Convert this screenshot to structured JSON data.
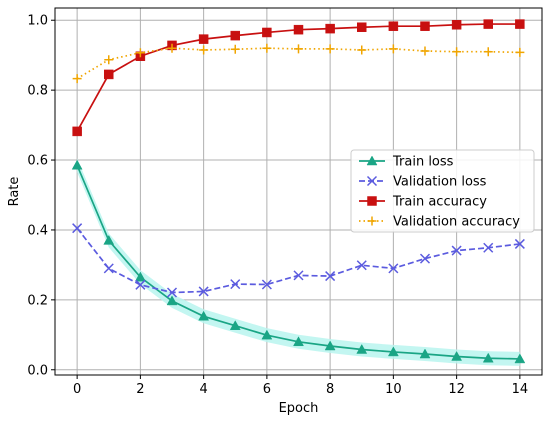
{
  "chart_data": {
    "type": "line",
    "title": "",
    "xlabel": "Epoch",
    "ylabel": "Rate",
    "xlim": [
      -0.7,
      14.7
    ],
    "ylim": [
      -0.015,
      1.035
    ],
    "x_ticks": [
      "0",
      "2",
      "4",
      "6",
      "8",
      "10",
      "12",
      "14"
    ],
    "y_ticks": [
      "0.0",
      "0.2",
      "0.4",
      "0.6",
      "0.8",
      "1.0"
    ],
    "grid": true,
    "legend_position": "center-right",
    "x": [
      0,
      1,
      2,
      3,
      4,
      5,
      6,
      7,
      8,
      9,
      10,
      11,
      12,
      13,
      14
    ],
    "series": [
      {
        "name": "Train loss",
        "color": "#1aa585",
        "marker": "triangle",
        "line_style": "solid",
        "band_color": "#b8f5ee",
        "values": [
          0.585,
          0.37,
          0.265,
          0.197,
          0.153,
          0.126,
          0.099,
          0.08,
          0.068,
          0.058,
          0.051,
          0.045,
          0.038,
          0.033,
          0.031
        ]
      },
      {
        "name": "Validation loss",
        "color": "#5b5bdf",
        "marker": "x",
        "line_style": "dashed",
        "values": [
          0.405,
          0.29,
          0.243,
          0.221,
          0.224,
          0.245,
          0.244,
          0.27,
          0.268,
          0.299,
          0.29,
          0.318,
          0.341,
          0.349,
          0.36
        ]
      },
      {
        "name": "Train accuracy",
        "color": "#c81010",
        "marker": "square",
        "line_style": "solid",
        "values": [
          0.682,
          0.845,
          0.897,
          0.928,
          0.946,
          0.956,
          0.965,
          0.973,
          0.976,
          0.98,
          0.983,
          0.983,
          0.987,
          0.989,
          0.989
        ]
      },
      {
        "name": "Validation accuracy",
        "color": "#f0a500",
        "marker": "plus",
        "line_style": "dotted",
        "values": [
          0.833,
          0.887,
          0.907,
          0.92,
          0.915,
          0.917,
          0.92,
          0.918,
          0.918,
          0.915,
          0.918,
          0.912,
          0.91,
          0.91,
          0.908
        ]
      }
    ]
  }
}
